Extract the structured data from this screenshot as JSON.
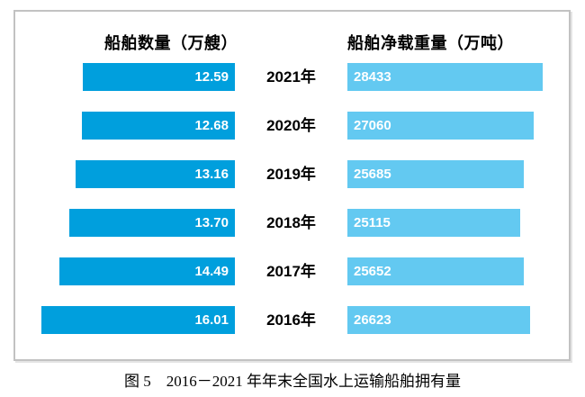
{
  "chart_data": {
    "type": "bar",
    "variant": "bidirectional-tornado",
    "title": "图 5　2016－2021 年年末全国水上运输船舶拥有量",
    "left_header": "船舶数量（万艘）",
    "right_header": "船舶净载重量（万吨）",
    "categories": [
      "2021年",
      "2020年",
      "2019年",
      "2018年",
      "2017年",
      "2016年"
    ],
    "series": [
      {
        "name": "船舶数量（万艘）",
        "direction": "left",
        "color": "#009fdd",
        "values": [
          12.59,
          12.68,
          13.16,
          13.7,
          14.49,
          16.01
        ]
      },
      {
        "name": "船舶净载重量（万吨）",
        "direction": "right",
        "color": "#63c9f1",
        "values": [
          28433,
          27060,
          25685,
          25115,
          25652,
          26623
        ]
      }
    ],
    "rows": [
      {
        "year": "2021年",
        "ships_label": "12.59",
        "deadweight_label": "28433"
      },
      {
        "year": "2020年",
        "ships_label": "12.68",
        "deadweight_label": "27060"
      },
      {
        "year": "2019年",
        "ships_label": "13.16",
        "deadweight_label": "25685"
      },
      {
        "year": "2018年",
        "ships_label": "13.70",
        "deadweight_label": "25115"
      },
      {
        "year": "2017年",
        "ships_label": "14.49",
        "deadweight_label": "25652"
      },
      {
        "year": "2016年",
        "ships_label": "16.01",
        "deadweight_label": "26623"
      }
    ],
    "value_labels": "inside-white-bold",
    "axis": "none",
    "grid": false,
    "legend": "column-headers"
  },
  "colors": {
    "left_bar": "#009fdd",
    "right_bar": "#63c9f1",
    "panel_border": "#c2c2c2",
    "text": "#000000",
    "value_text": "#ffffff"
  }
}
